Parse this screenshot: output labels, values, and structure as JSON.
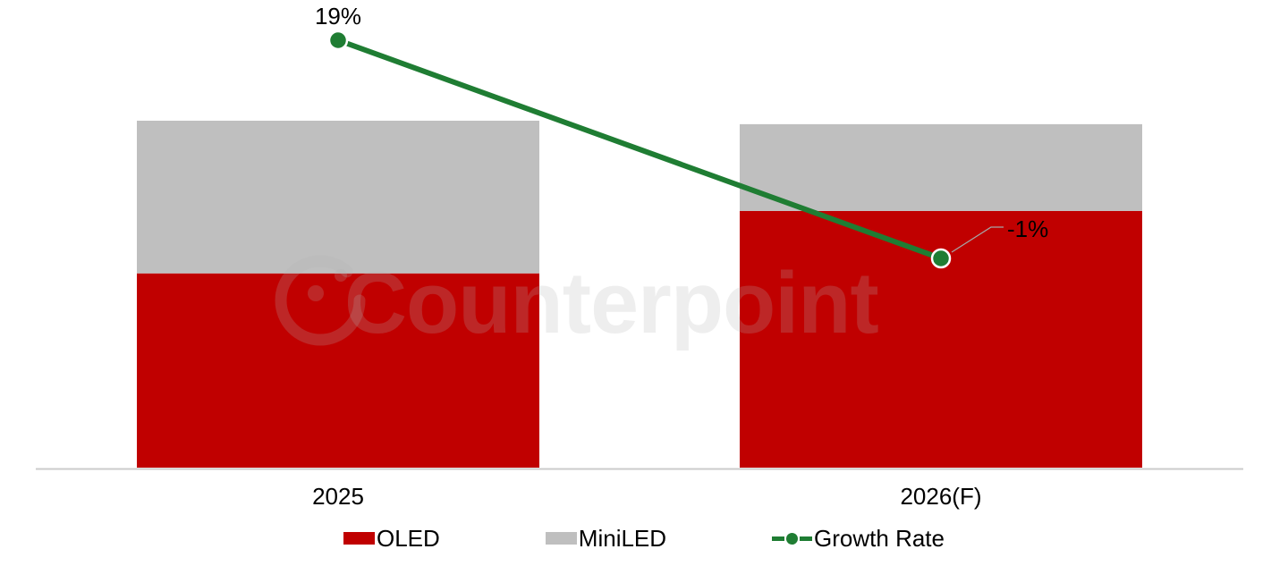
{
  "watermark": {
    "text": "Counterpoint"
  },
  "colors": {
    "axis_line": "#CBCBCB",
    "label_text": "#000000",
    "leader_line": "#A6A6A6",
    "marker_ring": "#FFFFFF",
    "watermark": "rgba(178,178,178,0.22)"
  },
  "chart_data": {
    "type": "bar",
    "subtype": "stacked-column-with-line",
    "title": "",
    "xlabel": "",
    "ylabel": "",
    "value_axis_visible": false,
    "gridlines": false,
    "legend_position": "bottom",
    "categories": [
      "2025",
      "2026(F)"
    ],
    "series": [
      {
        "name": "OLED",
        "kind": "bar",
        "color": "#C00000",
        "values": [
          56,
          74
        ]
      },
      {
        "name": "MiniLED",
        "kind": "bar",
        "color": "#BFBFBF",
        "values": [
          44,
          25
        ]
      },
      {
        "name": "Growth Rate",
        "kind": "line",
        "color": "#1F7D33",
        "values": [
          19,
          -1
        ],
        "data_labels": [
          "19%",
          "-1%"
        ]
      }
    ],
    "totals": [
      100,
      99
    ]
  }
}
